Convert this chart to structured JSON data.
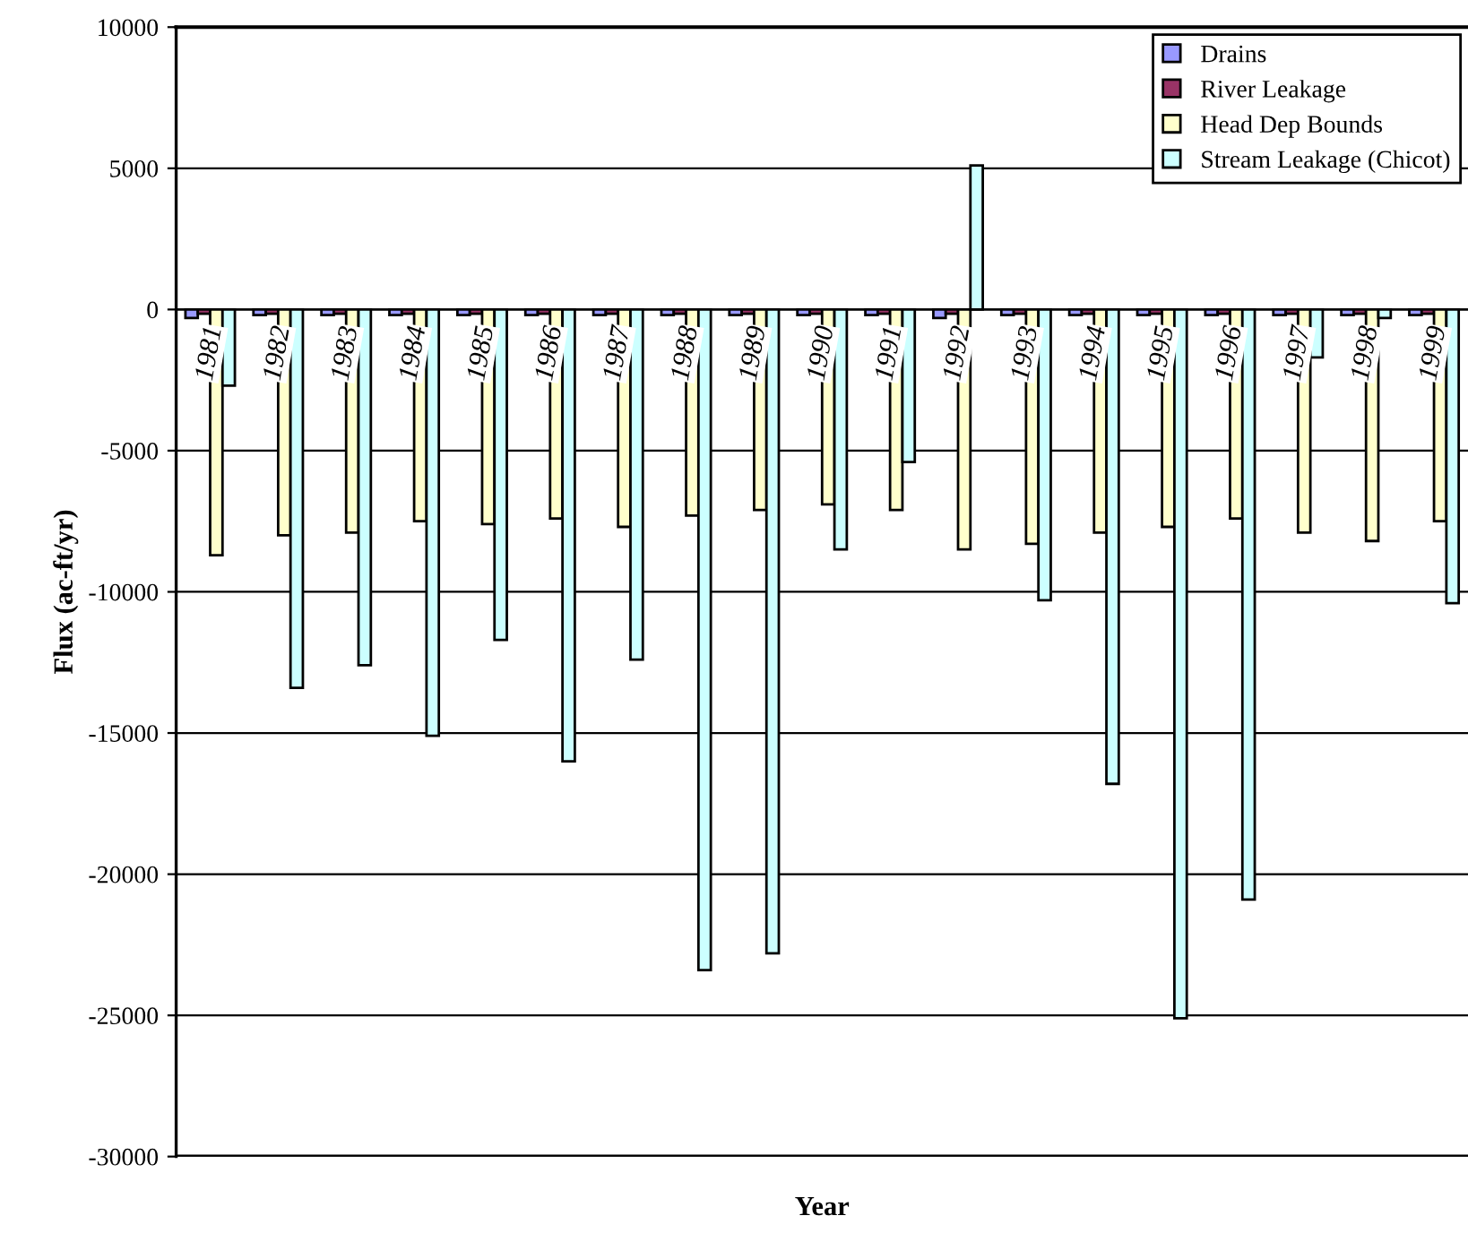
{
  "chart_data": {
    "type": "bar",
    "xlabel": "Year",
    "ylabel": "Flux (ac-ft/yr)",
    "categories": [
      "1981",
      "1982",
      "1983",
      "1984",
      "1985",
      "1986",
      "1987",
      "1988",
      "1989",
      "1990",
      "1991",
      "1992",
      "1993",
      "1994",
      "1995",
      "1996",
      "1997",
      "1998",
      "1999"
    ],
    "series": [
      {
        "name": "Drains",
        "color": "#9999ff",
        "values": [
          -300,
          -200,
          -200,
          -200,
          -200,
          -200,
          -200,
          -200,
          -200,
          -200,
          -200,
          -300,
          -200,
          -200,
          -200,
          -200,
          -200,
          -200,
          -200
        ]
      },
      {
        "name": "River Leakage",
        "color": "#993366",
        "values": [
          -150,
          -150,
          -150,
          -150,
          -150,
          -150,
          -150,
          -150,
          -150,
          -150,
          -150,
          -150,
          -150,
          -150,
          -150,
          -150,
          -150,
          -150,
          -150
        ]
      },
      {
        "name": "Head Dep Bounds",
        "color": "#ffffcc",
        "values": [
          -8700,
          -8000,
          -7900,
          -7500,
          -7600,
          -7400,
          -7700,
          -7300,
          -7100,
          -6900,
          -7100,
          -8500,
          -8300,
          -7900,
          -7700,
          -7400,
          -7900,
          -8200,
          -7500
        ]
      },
      {
        "name": "Stream Leakage (Chicot)",
        "color": "#ccffff",
        "values": [
          -2700,
          -13400,
          -12600,
          -15100,
          -11700,
          -16000,
          -12400,
          -23400,
          -22800,
          -8500,
          -5400,
          5100,
          -10300,
          -16800,
          -25100,
          -20900,
          -1700,
          -300,
          -10400
        ]
      }
    ],
    "ylim": [
      -30000,
      10000
    ],
    "yticks": [
      -30000,
      -25000,
      -20000,
      -15000,
      -10000,
      -5000,
      0,
      5000,
      10000
    ],
    "grid": "y",
    "legend": "top right"
  }
}
